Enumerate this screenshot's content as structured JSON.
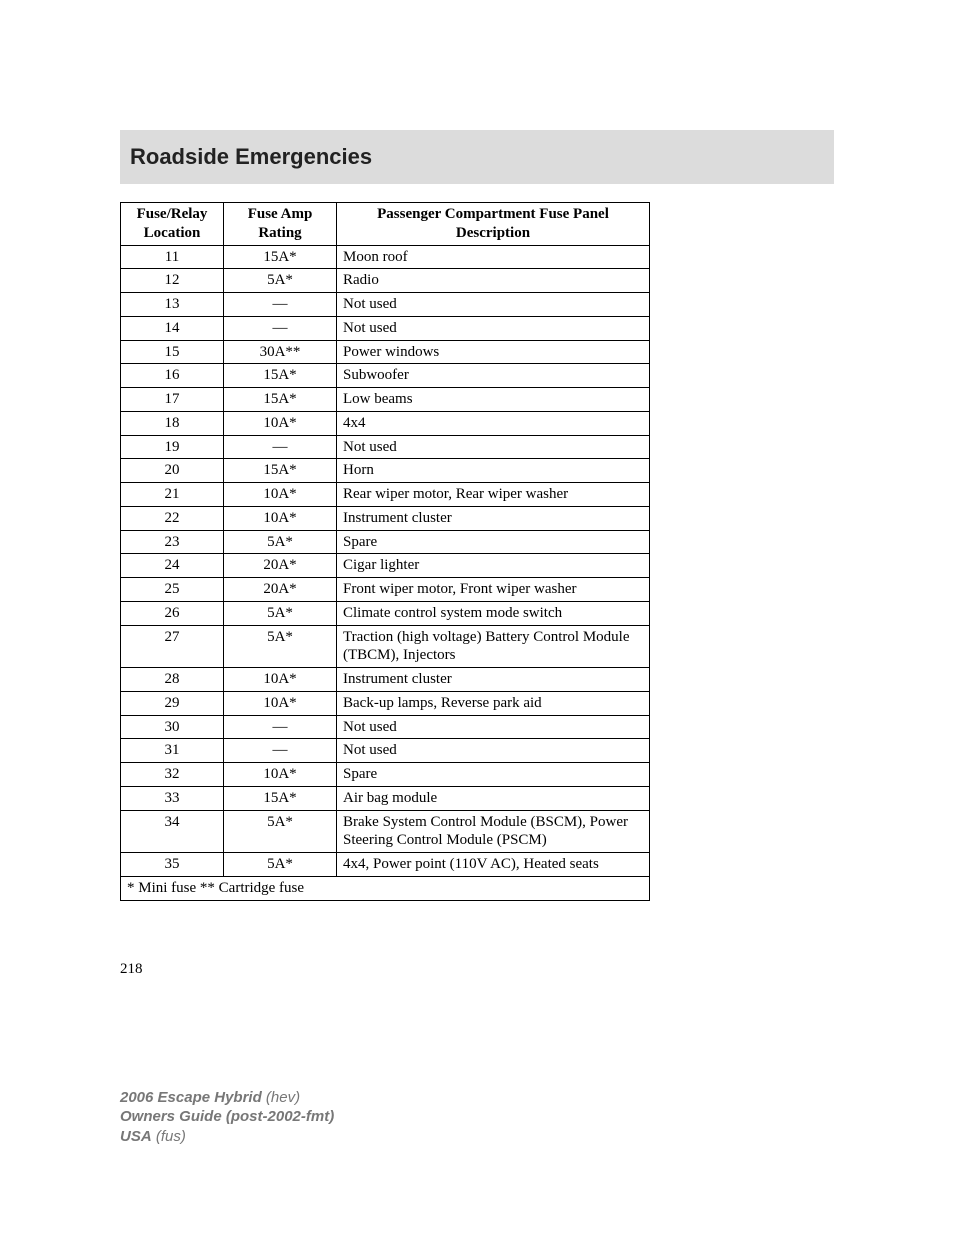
{
  "header": {
    "title": "Roadside Emergencies"
  },
  "table": {
    "columns": {
      "location": {
        "line1": "Fuse/Relay",
        "line2": "Location"
      },
      "rating": {
        "line1": "Fuse Amp",
        "line2": "Rating"
      },
      "desc": {
        "line1": "Passenger Compartment Fuse Panel",
        "line2": "Description"
      }
    },
    "rows": [
      {
        "loc": "11",
        "amp": "15A*",
        "desc": "Moon roof"
      },
      {
        "loc": "12",
        "amp": "5A*",
        "desc": "Radio"
      },
      {
        "loc": "13",
        "amp": "—",
        "desc": "Not used"
      },
      {
        "loc": "14",
        "amp": "—",
        "desc": "Not used"
      },
      {
        "loc": "15",
        "amp": "30A**",
        "desc": "Power windows"
      },
      {
        "loc": "16",
        "amp": "15A*",
        "desc": "Subwoofer"
      },
      {
        "loc": "17",
        "amp": "15A*",
        "desc": "Low beams"
      },
      {
        "loc": "18",
        "amp": "10A*",
        "desc": "4x4"
      },
      {
        "loc": "19",
        "amp": "—",
        "desc": "Not used"
      },
      {
        "loc": "20",
        "amp": "15A*",
        "desc": "Horn"
      },
      {
        "loc": "21",
        "amp": "10A*",
        "desc": "Rear wiper motor, Rear wiper washer"
      },
      {
        "loc": "22",
        "amp": "10A*",
        "desc": "Instrument cluster"
      },
      {
        "loc": "23",
        "amp": "5A*",
        "desc": "Spare"
      },
      {
        "loc": "24",
        "amp": "20A*",
        "desc": "Cigar lighter"
      },
      {
        "loc": "25",
        "amp": "20A*",
        "desc": "Front wiper motor, Front wiper washer"
      },
      {
        "loc": "26",
        "amp": "5A*",
        "desc": "Climate control system mode switch"
      },
      {
        "loc": "27",
        "amp": "5A*",
        "desc": "Traction (high voltage) Battery Control Module (TBCM), Injectors"
      },
      {
        "loc": "28",
        "amp": "10A*",
        "desc": "Instrument cluster"
      },
      {
        "loc": "29",
        "amp": "10A*",
        "desc": "Back-up lamps, Reverse park aid"
      },
      {
        "loc": "30",
        "amp": "—",
        "desc": "Not used"
      },
      {
        "loc": "31",
        "amp": "—",
        "desc": "Not used"
      },
      {
        "loc": "32",
        "amp": "10A*",
        "desc": "Spare"
      },
      {
        "loc": "33",
        "amp": "15A*",
        "desc": "Air bag module"
      },
      {
        "loc": "34",
        "amp": "5A*",
        "desc": "Brake System Control Module (BSCM), Power Steering Control Module (PSCM)"
      },
      {
        "loc": "35",
        "amp": "5A*",
        "desc": "4x4, Power point (110V AC), Heated seats"
      }
    ],
    "footnote": "* Mini fuse ** Cartridge fuse"
  },
  "page_number": "218",
  "footer": {
    "line1_bold": "2006 Escape Hybrid",
    "line1_ital": "(hev)",
    "line2_bold": "Owners Guide (post-2002-fmt)",
    "line3_bold": "USA",
    "line3_ital": "(fus)"
  }
}
